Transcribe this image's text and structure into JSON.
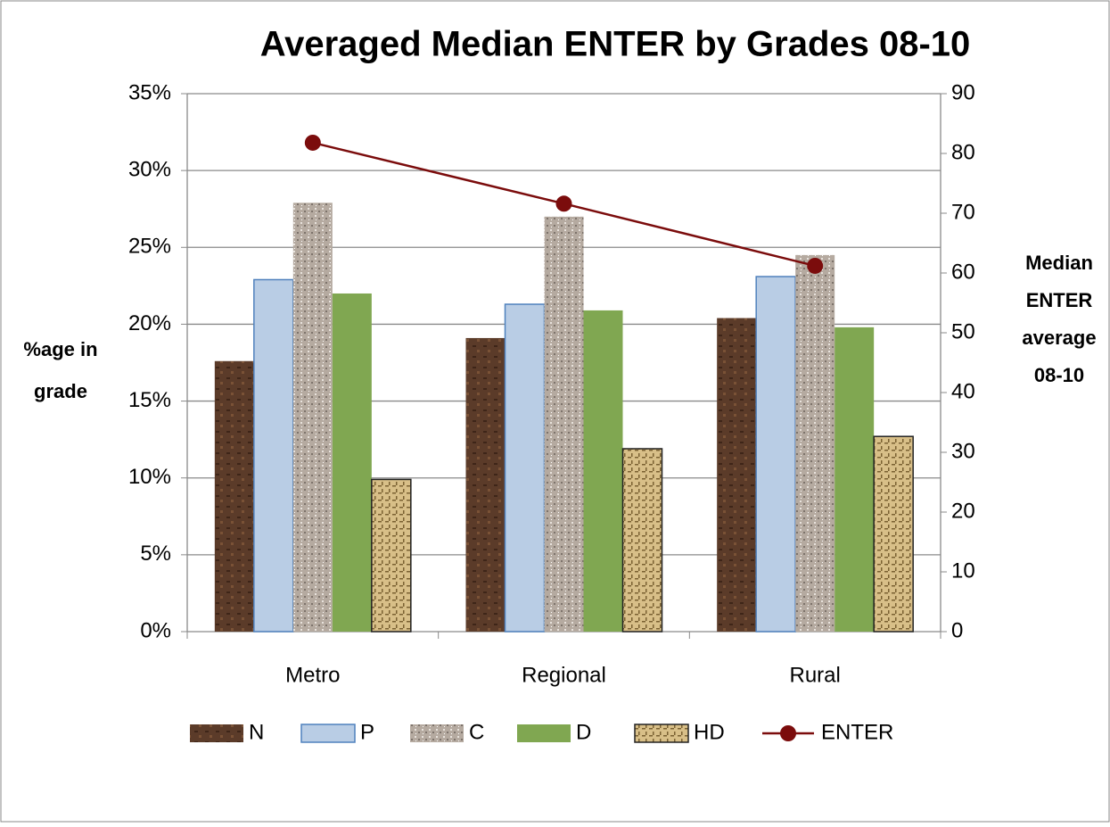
{
  "chart_data": {
    "type": "bar",
    "title": "Averaged Median ENTER by Grades 08-10",
    "y_label": "%age in grade",
    "y2_label": "Median ENTER average 08-10",
    "categories": [
      "Metro",
      "Regional",
      "Rural"
    ],
    "series": [
      {
        "name": "N",
        "color": "#5b3b29",
        "values": [
          17.6,
          19.1,
          20.4
        ]
      },
      {
        "name": "P",
        "color": "#b9cde5",
        "values": [
          22.9,
          21.3,
          23.1
        ]
      },
      {
        "name": "C",
        "color": "#b5aaa0",
        "values": [
          27.9,
          27.0,
          24.5
        ]
      },
      {
        "name": "D",
        "color": "#80a751",
        "values": [
          22.0,
          20.9,
          19.8
        ]
      },
      {
        "name": "HD",
        "color": "#d8bf88",
        "values": [
          9.9,
          11.9,
          12.7
        ]
      },
      {
        "name": "ENTER",
        "type": "line",
        "axis": "y2",
        "color": "#7b0c0c",
        "values": [
          81.8,
          71.6,
          61.2
        ]
      }
    ],
    "ylim": [
      0,
      35
    ],
    "yticks": [
      {
        "value": 0,
        "label": "0%"
      },
      {
        "value": 5,
        "label": "5%"
      },
      {
        "value": 10,
        "label": "10%"
      },
      {
        "value": 15,
        "label": "15%"
      },
      {
        "value": 20,
        "label": "20%"
      },
      {
        "value": 25,
        "label": "25%"
      },
      {
        "value": 30,
        "label": "30%"
      },
      {
        "value": 35,
        "label": "35%"
      }
    ],
    "y2lim": [
      0,
      90
    ],
    "y2ticks": [
      0,
      10,
      20,
      30,
      40,
      50,
      60,
      70,
      80,
      90
    ],
    "grid": true
  }
}
